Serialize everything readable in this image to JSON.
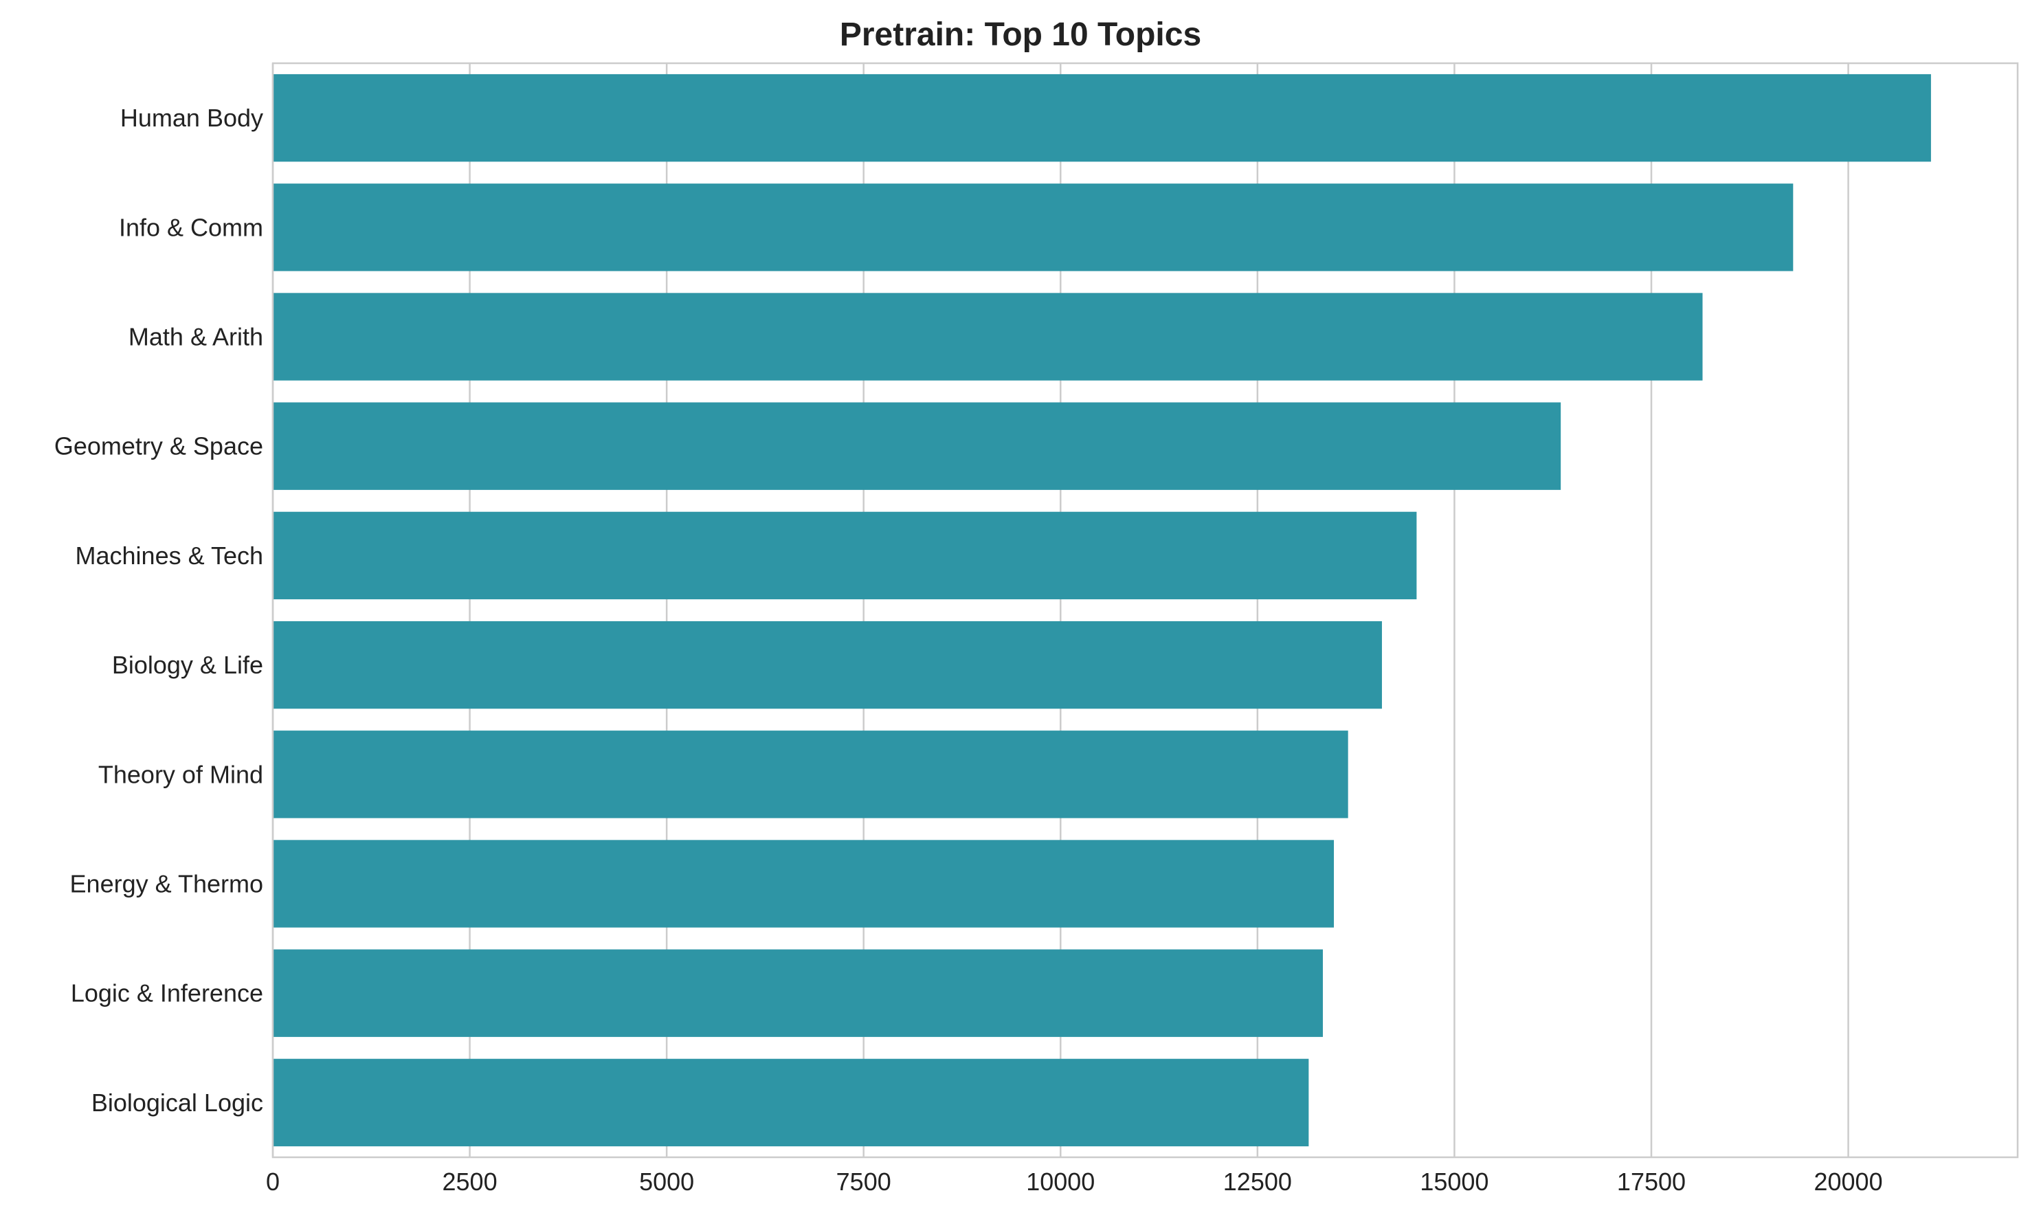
{
  "chart_data": {
    "type": "bar",
    "orientation": "horizontal",
    "title": "Pretrain: Top 10 Topics",
    "xlabel": "",
    "ylabel": "",
    "categories": [
      "Human Body",
      "Info & Comm",
      "Math & Arith",
      "Geometry & Space",
      "Machines & Tech",
      "Biology & Life",
      "Theory of Mind",
      "Energy & Thermo",
      "Logic & Inference",
      "Biological Logic"
    ],
    "values": [
      21050,
      19300,
      18150,
      16350,
      14520,
      14080,
      13650,
      13470,
      13330,
      13150
    ],
    "xlim": [
      0,
      22150
    ],
    "xticks": [
      0,
      2500,
      5000,
      7500,
      10000,
      12500,
      15000,
      17500,
      20000
    ],
    "xtick_labels": [
      "0",
      "2500",
      "5000",
      "7500",
      "10000",
      "12500",
      "15000",
      "17500",
      "20000"
    ],
    "grid": "vertical",
    "bar_color": "#2e95a5",
    "grid_color": "#cccccc",
    "axis_color": "#cccccc"
  }
}
